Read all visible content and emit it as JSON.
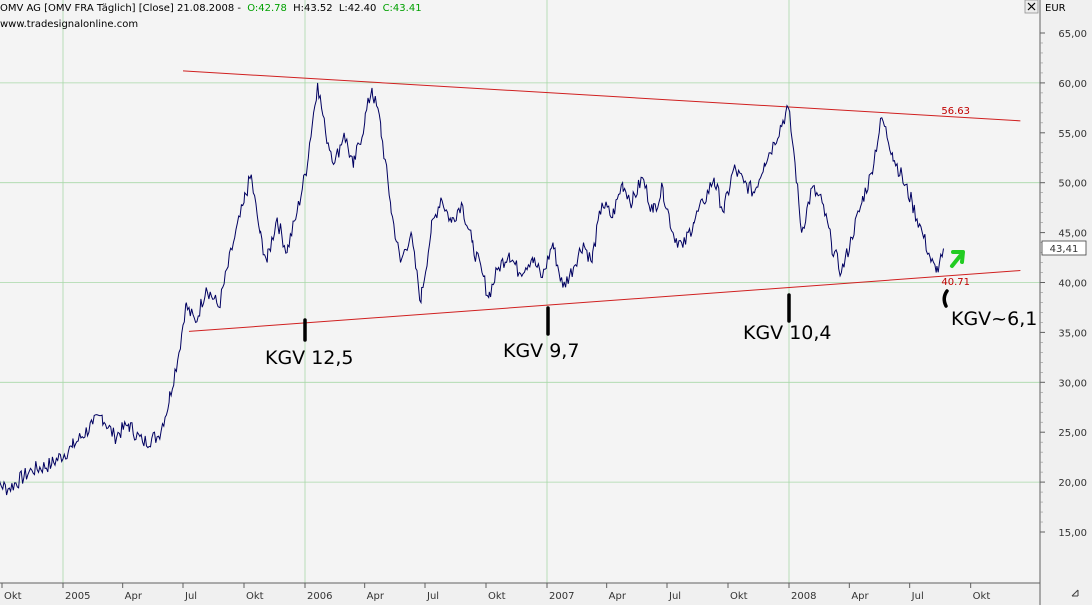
{
  "header": {
    "instrument": "OMV AG [OMV FRA  Täglich] [Close] 21.08.2008 -",
    "open": "O:42.78",
    "high": "H:43.52",
    "low": "L:42.40",
    "close": "C:43.41",
    "source": "www.tradesignalonline.com"
  },
  "currency": "EUR",
  "last_price_label": "43,41",
  "colors": {
    "background": "#f4f4f4",
    "grid": "#a8d8a8",
    "price_line": "#000060",
    "trend_line": "#d02020",
    "header_black": "#000000",
    "header_green": "#00a000",
    "arrow_green": "#22cc22"
  },
  "chart_data": {
    "type": "line",
    "title": "OMV AG",
    "ylim": [
      14,
      66
    ],
    "y_ticks": [
      "15,00",
      "20,00",
      "25,00",
      "30,00",
      "35,00",
      "40,00",
      "45,00",
      "50,00",
      "55,00",
      "60,00",
      "65,00"
    ],
    "x_ticks": [
      "Okt",
      "2005",
      "Apr",
      "Jul",
      "Okt",
      "2006",
      "Apr",
      "Jul",
      "Okt",
      "2007",
      "Apr",
      "Jul",
      "Okt",
      "2008",
      "Apr",
      "Jul",
      "Okt"
    ],
    "x_range": [
      "2004-09-10",
      "2008-12-31"
    ],
    "series": [
      {
        "name": "OMV Close",
        "points": [
          [
            "2004-09-10",
            20.6
          ],
          [
            "2004-10-10",
            19.3
          ],
          [
            "2004-11-15",
            21.2
          ],
          [
            "2004-12-15",
            21.8
          ],
          [
            "2005-01-15",
            23.5
          ],
          [
            "2005-02-15",
            25.8
          ],
          [
            "2005-03-01",
            26.7
          ],
          [
            "2005-03-20",
            24.5
          ],
          [
            "2005-04-10",
            25.8
          ],
          [
            "2005-05-01",
            24.0
          ],
          [
            "2005-05-25",
            24.6
          ],
          [
            "2005-06-10",
            28.0
          ],
          [
            "2005-06-25",
            33.0
          ],
          [
            "2005-07-05",
            37.8
          ],
          [
            "2005-07-20",
            36.0
          ],
          [
            "2005-08-05",
            39.5
          ],
          [
            "2005-08-25",
            37.5
          ],
          [
            "2005-09-15",
            44.0
          ],
          [
            "2005-10-01",
            48.0
          ],
          [
            "2005-10-12",
            50.8
          ],
          [
            "2005-10-25",
            45.0
          ],
          [
            "2005-11-05",
            42.0
          ],
          [
            "2005-11-20",
            46.5
          ],
          [
            "2005-12-05",
            43.0
          ],
          [
            "2005-12-20",
            47.0
          ],
          [
            "2006-01-05",
            52.0
          ],
          [
            "2006-01-20",
            60.0
          ],
          [
            "2006-02-01",
            55.0
          ],
          [
            "2006-02-15",
            52.0
          ],
          [
            "2006-03-01",
            55.0
          ],
          [
            "2006-03-15",
            51.5
          ],
          [
            "2006-04-01",
            56.0
          ],
          [
            "2006-04-12",
            59.5
          ],
          [
            "2006-04-25",
            56.0
          ],
          [
            "2006-05-10",
            48.0
          ],
          [
            "2006-05-25",
            42.0
          ],
          [
            "2006-06-10",
            45.0
          ],
          [
            "2006-06-25",
            38.0
          ],
          [
            "2006-07-10",
            45.0
          ],
          [
            "2006-07-25",
            48.5
          ],
          [
            "2006-08-10",
            46.0
          ],
          [
            "2006-08-25",
            48.0
          ],
          [
            "2006-09-10",
            44.0
          ],
          [
            "2006-09-25",
            41.0
          ],
          [
            "2006-10-05",
            38.5
          ],
          [
            "2006-10-20",
            41.5
          ],
          [
            "2006-11-05",
            43.0
          ],
          [
            "2006-11-20",
            41.0
          ],
          [
            "2006-12-10",
            42.5
          ],
          [
            "2006-12-25",
            40.5
          ],
          [
            "2007-01-10",
            44.0
          ],
          [
            "2007-01-25",
            39.5
          ],
          [
            "2007-02-10",
            41.5
          ],
          [
            "2007-02-25",
            44.0
          ],
          [
            "2007-03-10",
            42.0
          ],
          [
            "2007-03-25",
            48.0
          ],
          [
            "2007-04-10",
            46.5
          ],
          [
            "2007-04-25",
            50.0
          ],
          [
            "2007-05-10",
            48.0
          ],
          [
            "2007-05-25",
            50.5
          ],
          [
            "2007-06-10",
            47.0
          ],
          [
            "2007-06-25",
            49.5
          ],
          [
            "2007-07-10",
            45.0
          ],
          [
            "2007-07-25",
            43.5
          ],
          [
            "2007-08-10",
            46.0
          ],
          [
            "2007-08-25",
            48.0
          ],
          [
            "2007-09-10",
            50.5
          ],
          [
            "2007-09-25",
            47.0
          ],
          [
            "2007-10-10",
            51.5
          ],
          [
            "2007-10-25",
            50.0
          ],
          [
            "2007-11-10",
            49.0
          ],
          [
            "2007-11-25",
            52.0
          ],
          [
            "2007-12-10",
            54.0
          ],
          [
            "2007-12-31",
            57.5
          ],
          [
            "2008-01-10",
            52.0
          ],
          [
            "2008-01-20",
            45.0
          ],
          [
            "2008-02-05",
            49.5
          ],
          [
            "2008-02-20",
            48.0
          ],
          [
            "2008-03-05",
            44.0
          ],
          [
            "2008-03-20",
            41.0
          ],
          [
            "2008-04-05",
            44.5
          ],
          [
            "2008-04-20",
            48.0
          ],
          [
            "2008-05-05",
            51.0
          ],
          [
            "2008-05-20",
            56.5
          ],
          [
            "2008-06-05",
            53.0
          ],
          [
            "2008-06-20",
            50.5
          ],
          [
            "2008-07-05",
            48.0
          ],
          [
            "2008-07-20",
            45.0
          ],
          [
            "2008-08-01",
            42.5
          ],
          [
            "2008-08-10",
            41.0
          ],
          [
            "2008-08-15",
            42.0
          ],
          [
            "2008-08-21",
            43.41
          ]
        ]
      }
    ],
    "trend_lines": [
      {
        "name": "upper",
        "from": [
          "2005-07-01",
          61.2
        ],
        "to": [
          "2008-12-15",
          56.2
        ],
        "label": "56.63"
      },
      {
        "name": "lower",
        "from": [
          "2005-07-10",
          35.1
        ],
        "to": [
          "2008-12-15",
          41.2
        ],
        "label": "40.71"
      }
    ],
    "annotations": [
      {
        "text": "KGV 12,5",
        "x": "2006-01-01",
        "y": 35.8
      },
      {
        "text": "KGV 9,7",
        "x": "2007-01-01",
        "y": 37.5
      },
      {
        "text": "KGV 10,4",
        "x": "2008-01-01",
        "y": 38.6
      },
      {
        "text": "KGV~6,1",
        "x": "2008-08-25",
        "y": 40.5
      }
    ]
  }
}
